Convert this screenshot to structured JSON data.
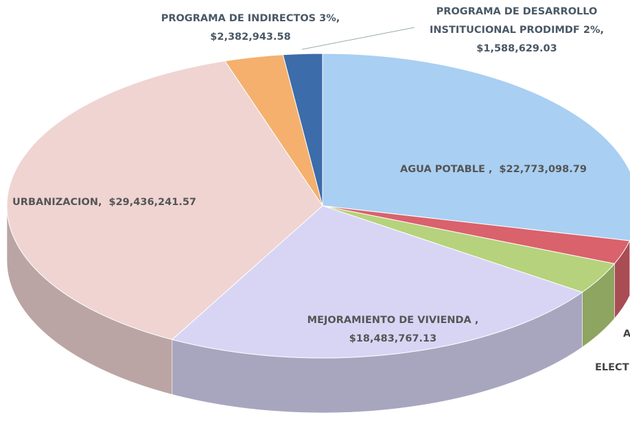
{
  "chart_data": {
    "type": "pie3d",
    "categories": [
      "AGUA POTABLE ,",
      "A",
      "ELECT",
      "MEJORAMIENTO DE VIVIENDA ,",
      "URBANIZACION,",
      "PROGRAMA DE  INDIRECTOS 3%,",
      "PROGRAMA DE DESARROLLO INSTITUCIONAL PRODIMDF 2%,"
    ],
    "values": [
      22773098.79,
      2000000,
      2700000,
      18483767.13,
      29436241.57,
      2382943.58,
      1588629.03
    ],
    "value_labels": [
      "$22,773,098.79",
      null,
      null,
      "$18,483,767.13",
      "$29,436,241.57",
      "$2,382,943.58",
      "$1,588,629.03"
    ],
    "colors": [
      "#a9cff2",
      "#d9626c",
      "#b6d27c",
      "#d8d5f4",
      "#efd4d2",
      "#f5b06e",
      "#3d6cab"
    ]
  }
}
